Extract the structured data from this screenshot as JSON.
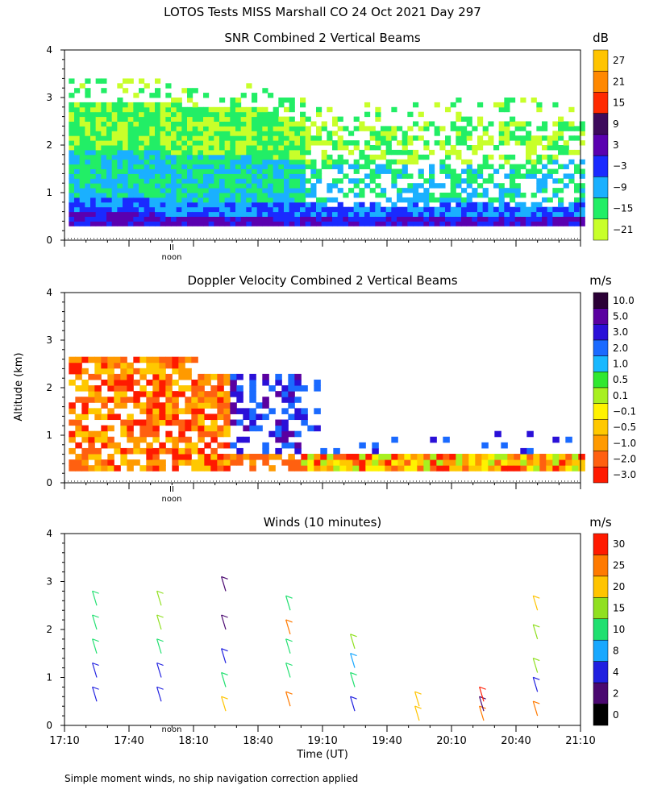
{
  "figure": {
    "title": "LOTOS Tests MISS Marshall CO  24 Oct 2021 Day 297",
    "ylabel": "Altitude (km)",
    "xlabel": "Time (UT)",
    "footnote": "Simple moment winds, no ship navigation correction applied",
    "noon_marker": {
      "label": "noon",
      "glyph": "II"
    },
    "x_ticks": [
      "17:10",
      "17:40",
      "18:10",
      "18:40",
      "19:10",
      "19:40",
      "20:10",
      "20:40",
      "21:10"
    ]
  },
  "chart_data": [
    {
      "type": "heatmap",
      "title": "SNR Combined 2 Vertical Beams",
      "colorbar_unit": "dB",
      "xlim": [
        "17:10",
        "21:10"
      ],
      "ylim": [
        0,
        4
      ],
      "y_ticks": [
        0,
        1,
        2,
        3,
        4
      ],
      "colorbar_ticks": [
        "27",
        "21",
        "15",
        "9",
        "3",
        "−3",
        "−9",
        "−15",
        "−21"
      ],
      "colors": [
        "#ffc400",
        "#ff8800",
        "#ff2a00",
        "#3d0a5c",
        "#5a00b0",
        "#1a2aff",
        "#1ab0ff",
        "#22ee66",
        "#c8ff2a"
      ],
      "altitude_coverage_km": [
        0.3,
        3.0
      ],
      "description_levels": [
        {
          "time": "17:10",
          "top_km": 2.9
        },
        {
          "time": "18:40",
          "top_km": 2.7
        },
        {
          "time": "19:10",
          "top_km": 2.3
        },
        {
          "time": "21:10",
          "top_km": 2.5
        }
      ]
    },
    {
      "type": "heatmap",
      "title": "Doppler Velocity Combined 2 Vertical Beams",
      "colorbar_unit": "m/s",
      "xlim": [
        "17:10",
        "21:10"
      ],
      "ylim": [
        0,
        4
      ],
      "y_ticks": [
        0,
        1,
        2,
        3,
        4
      ],
      "colorbar_ticks": [
        "10.0",
        "5.0",
        "3.0",
        "2.0",
        "1.0",
        "0.5",
        "0.1",
        "−0.1",
        "−0.5",
        "−1.0",
        "−2.0",
        "−3.0"
      ],
      "colors": [
        "#2b0036",
        "#5a00a0",
        "#2a10d8",
        "#1a6aff",
        "#18b8ff",
        "#30e830",
        "#a8f020",
        "#fff200",
        "#ffc800",
        "#ff9a00",
        "#ff6010",
        "#ff1a00"
      ]
    },
    {
      "type": "scatter",
      "subtype": "wind-barbs",
      "title": "Winds (10 minutes)",
      "colorbar_unit": "m/s",
      "xlim": [
        "17:10",
        "21:10"
      ],
      "ylim": [
        0,
        4
      ],
      "y_ticks": [
        0,
        1,
        2,
        3,
        4
      ],
      "colorbar_ticks": [
        "30",
        "25",
        "20",
        "15",
        "10",
        "8",
        "4",
        "2",
        "0"
      ],
      "colors": [
        "#ff1a00",
        "#ff7a00",
        "#ffc400",
        "#90e020",
        "#20e070",
        "#18a8ff",
        "#2020e0",
        "#4a0870",
        "#000000"
      ],
      "profiles": [
        {
          "time": "17:25",
          "heights_km": [
            0.5,
            1.0,
            1.5,
            2.0,
            2.5
          ],
          "speeds_ms": [
            4,
            6,
            10,
            12,
            14
          ]
        },
        {
          "time": "17:55",
          "heights_km": [
            0.5,
            1.0,
            1.5,
            2.0,
            2.5
          ],
          "speeds_ms": [
            4,
            4,
            14,
            16,
            18
          ]
        },
        {
          "time": "18:25",
          "heights_km": [
            0.3,
            0.8,
            1.3,
            2.0,
            2.8
          ],
          "speeds_ms": [
            20,
            10,
            4,
            2,
            2
          ]
        },
        {
          "time": "18:55",
          "heights_km": [
            0.4,
            1.0,
            1.5,
            1.9,
            2.4
          ],
          "speeds_ms": [
            25,
            14,
            14,
            25,
            14
          ]
        },
        {
          "time": "19:25",
          "heights_km": [
            0.3,
            0.8,
            1.2,
            1.6
          ],
          "speeds_ms": [
            4,
            10,
            8,
            15
          ]
        },
        {
          "time": "19:55",
          "heights_km": [
            0.1,
            0.4
          ],
          "speeds_ms": [
            20,
            22
          ]
        },
        {
          "time": "20:25",
          "heights_km": [
            0.1,
            0.3,
            0.5
          ],
          "speeds_ms": [
            25,
            2,
            30
          ]
        },
        {
          "time": "20:50",
          "heights_km": [
            0.2,
            0.7,
            1.1,
            1.8,
            2.4
          ],
          "speeds_ms": [
            25,
            4,
            15,
            18,
            20
          ]
        }
      ]
    }
  ]
}
